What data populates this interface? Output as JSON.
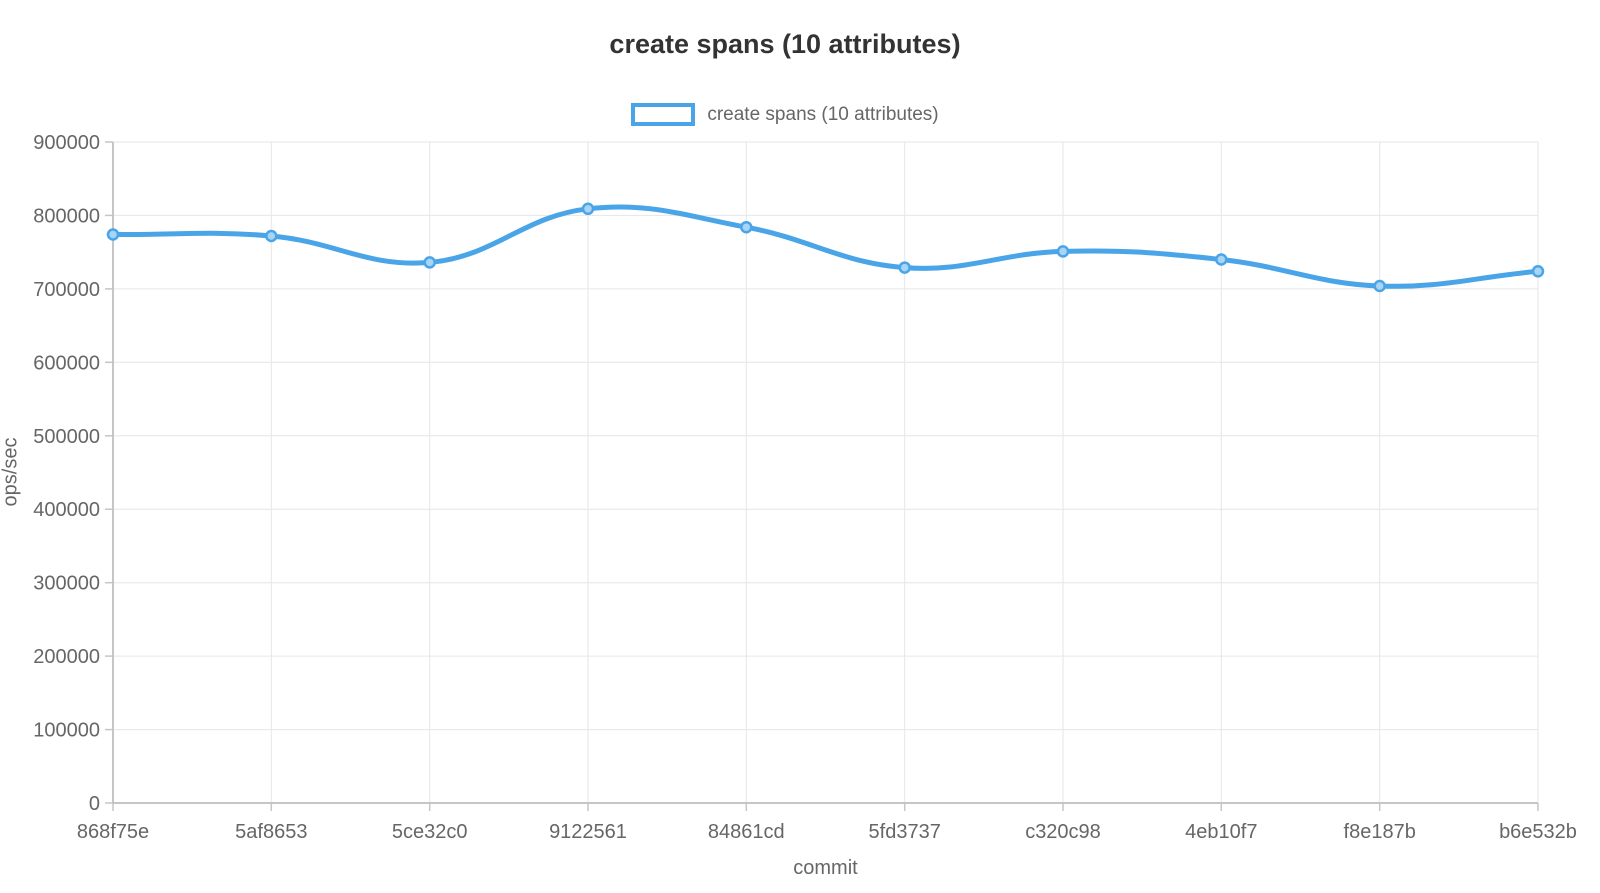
{
  "chart": {
    "title": "create spans (10 attributes)",
    "legend_label": "create spans (10 attributes)"
  },
  "chart_data": {
    "type": "line",
    "title": "create spans (10 attributes)",
    "xlabel": "commit",
    "ylabel": "ops/sec",
    "categories": [
      "868f75e",
      "5af8653",
      "5ce32c0",
      "9122561",
      "84861cd",
      "5fd3737",
      "c320c98",
      "4eb10f7",
      "f8e187b",
      "b6e532b"
    ],
    "series": [
      {
        "name": "create spans (10 attributes)",
        "values": [
          774000,
          772000,
          736000,
          809000,
          784000,
          729000,
          751000,
          740000,
          704000,
          724000
        ]
      }
    ],
    "ylim": [
      0,
      900000
    ],
    "ytick_step": 100000,
    "grid": true,
    "legend_position": "top",
    "line_tension": 0.4,
    "colors": {
      "line": "#4AA5E8",
      "point_fill": "#A9D4F4",
      "gridline": "#E6E6E6",
      "axis": "#B4B4B4",
      "tick": "#C6C6C6",
      "text": "#666666",
      "title": "#333333"
    }
  }
}
